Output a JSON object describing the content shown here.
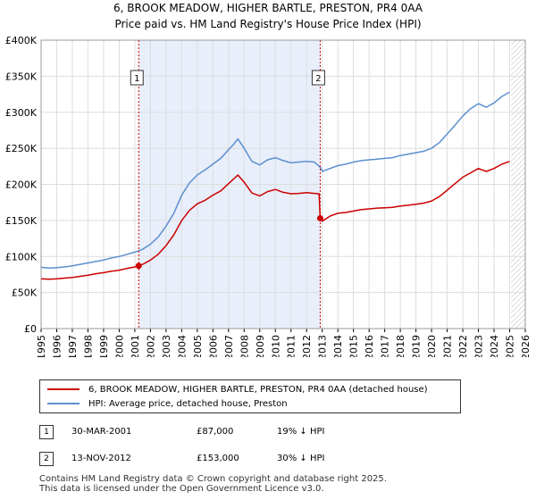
{
  "title_line1": "6, BROOK MEADOW, HIGHER BARTLE, PRESTON, PR4 0AA",
  "title_line2": "Price paid vs. HM Land Registry's House Price Index (HPI)",
  "legend": {
    "property_label": "6, BROOK MEADOW, HIGHER BARTLE, PRESTON, PR4 0AA (detached house)",
    "hpi_label": "HPI: Average price, detached house, Preston"
  },
  "transactions": [
    {
      "num": "1",
      "date": "30-MAR-2001",
      "price": "£87,000",
      "hpi": "19% ↓ HPI"
    },
    {
      "num": "2",
      "date": "13-NOV-2012",
      "price": "£153,000",
      "hpi": "30% ↓ HPI"
    }
  ],
  "footer_line1": "Contains HM Land Registry data © Crown copyright and database right 2025.",
  "footer_line2": "This data is licensed under the Open Government Licence v3.0.",
  "colors": {
    "property": "#cc0000",
    "hpi": "#5b8fcf",
    "shade": "#e8eefa",
    "marker_line": "#cc0000"
  },
  "chart_data": {
    "type": "line",
    "xlim": [
      1995,
      2026
    ],
    "ylim": [
      0,
      400000
    ],
    "y_ticks": [
      0,
      50000,
      100000,
      150000,
      200000,
      250000,
      300000,
      350000,
      400000
    ],
    "y_tick_labels": [
      "£0",
      "£50K",
      "£100K",
      "£150K",
      "£200K",
      "£250K",
      "£300K",
      "£350K",
      "£400K"
    ],
    "x_ticks": [
      "1995",
      "1996",
      "1997",
      "1998",
      "1999",
      "2000",
      "2001",
      "2002",
      "2003",
      "2004",
      "2005",
      "2006",
      "2007",
      "2008",
      "2009",
      "2010",
      "2011",
      "2012",
      "2013",
      "2014",
      "2015",
      "2016",
      "2017",
      "2018",
      "2019",
      "2020",
      "2021",
      "2022",
      "2023",
      "2024",
      "2025",
      "2026"
    ],
    "shaded_period": [
      2001.25,
      2012.87
    ],
    "forecast_start": 2025.1,
    "markers": [
      {
        "label": "1",
        "x": 2001.25,
        "y": 87000
      },
      {
        "label": "2",
        "x": 2012.87,
        "y": 153000
      }
    ],
    "series": [
      {
        "name": "HPI: Average price, detached house, Preston",
        "x": [
          1995.0,
          1995.5,
          1996.0,
          1996.5,
          1997.0,
          1997.5,
          1998.0,
          1998.5,
          1999.0,
          1999.5,
          2000.0,
          2000.5,
          2001.0,
          2001.5,
          2002.0,
          2002.5,
          2003.0,
          2003.5,
          2004.0,
          2004.5,
          2005.0,
          2005.5,
          2006.0,
          2006.5,
          2007.0,
          2007.3,
          2007.6,
          2008.0,
          2008.5,
          2009.0,
          2009.5,
          2010.0,
          2010.5,
          2011.0,
          2011.5,
          2012.0,
          2012.5,
          2012.9,
          2013.0,
          2013.5,
          2014.0,
          2014.5,
          2015.0,
          2015.5,
          2016.0,
          2016.5,
          2017.0,
          2017.5,
          2018.0,
          2018.5,
          2019.0,
          2019.5,
          2020.0,
          2020.5,
          2021.0,
          2021.5,
          2022.0,
          2022.5,
          2023.0,
          2023.5,
          2024.0,
          2024.5,
          2025.0
        ],
        "values": [
          85000,
          84000,
          84500,
          85500,
          87000,
          89000,
          91000,
          93000,
          95000,
          98000,
          100000,
          103000,
          106000,
          110000,
          117000,
          127000,
          142000,
          160000,
          185000,
          202000,
          213000,
          220000,
          228000,
          236000,
          248000,
          255000,
          263000,
          250000,
          232000,
          227000,
          234000,
          237000,
          233000,
          230000,
          231000,
          232000,
          231000,
          223000,
          218000,
          222000,
          226000,
          228000,
          231000,
          233000,
          234000,
          235000,
          236000,
          237000,
          240000,
          242000,
          244000,
          246000,
          250000,
          258000,
          270000,
          282000,
          295000,
          305000,
          312000,
          307000,
          313000,
          322000,
          328000
        ]
      },
      {
        "name": "6, BROOK MEADOW, HIGHER BARTLE, PRESTON, PR4 0AA (detached house)",
        "x": [
          1995.0,
          1995.5,
          1996.0,
          1996.5,
          1997.0,
          1997.5,
          1998.0,
          1998.5,
          1999.0,
          1999.5,
          2000.0,
          2000.5,
          2001.0,
          2001.25,
          2001.5,
          2002.0,
          2002.5,
          2003.0,
          2003.5,
          2004.0,
          2004.5,
          2005.0,
          2005.5,
          2006.0,
          2006.5,
          2007.0,
          2007.3,
          2007.6,
          2008.0,
          2008.5,
          2009.0,
          2009.5,
          2010.0,
          2010.5,
          2011.0,
          2011.5,
          2012.0,
          2012.5,
          2012.8,
          2012.87,
          2013.0,
          2013.5,
          2014.0,
          2014.5,
          2015.0,
          2015.5,
          2016.0,
          2016.5,
          2017.0,
          2017.5,
          2018.0,
          2018.5,
          2019.0,
          2019.5,
          2020.0,
          2020.5,
          2021.0,
          2021.5,
          2022.0,
          2022.5,
          2023.0,
          2023.5,
          2024.0,
          2024.5,
          2025.0
        ],
        "values": [
          69000,
          68500,
          69000,
          70000,
          71000,
          72500,
          74000,
          76000,
          77500,
          79500,
          81000,
          83500,
          85500,
          87000,
          89000,
          95000,
          103000,
          115000,
          130000,
          150000,
          164000,
          173000,
          178000,
          185000,
          191000,
          201000,
          207000,
          213000,
          203000,
          188000,
          184000,
          190000,
          193000,
          189000,
          187000,
          187500,
          188500,
          187500,
          187000,
          153000,
          149000,
          156000,
          160000,
          161000,
          163000,
          165000,
          166000,
          167000,
          167500,
          168000,
          170000,
          171000,
          172500,
          174000,
          177000,
          183000,
          192000,
          201000,
          210000,
          216000,
          222000,
          218000,
          222000,
          228000,
          232000
        ]
      }
    ]
  }
}
